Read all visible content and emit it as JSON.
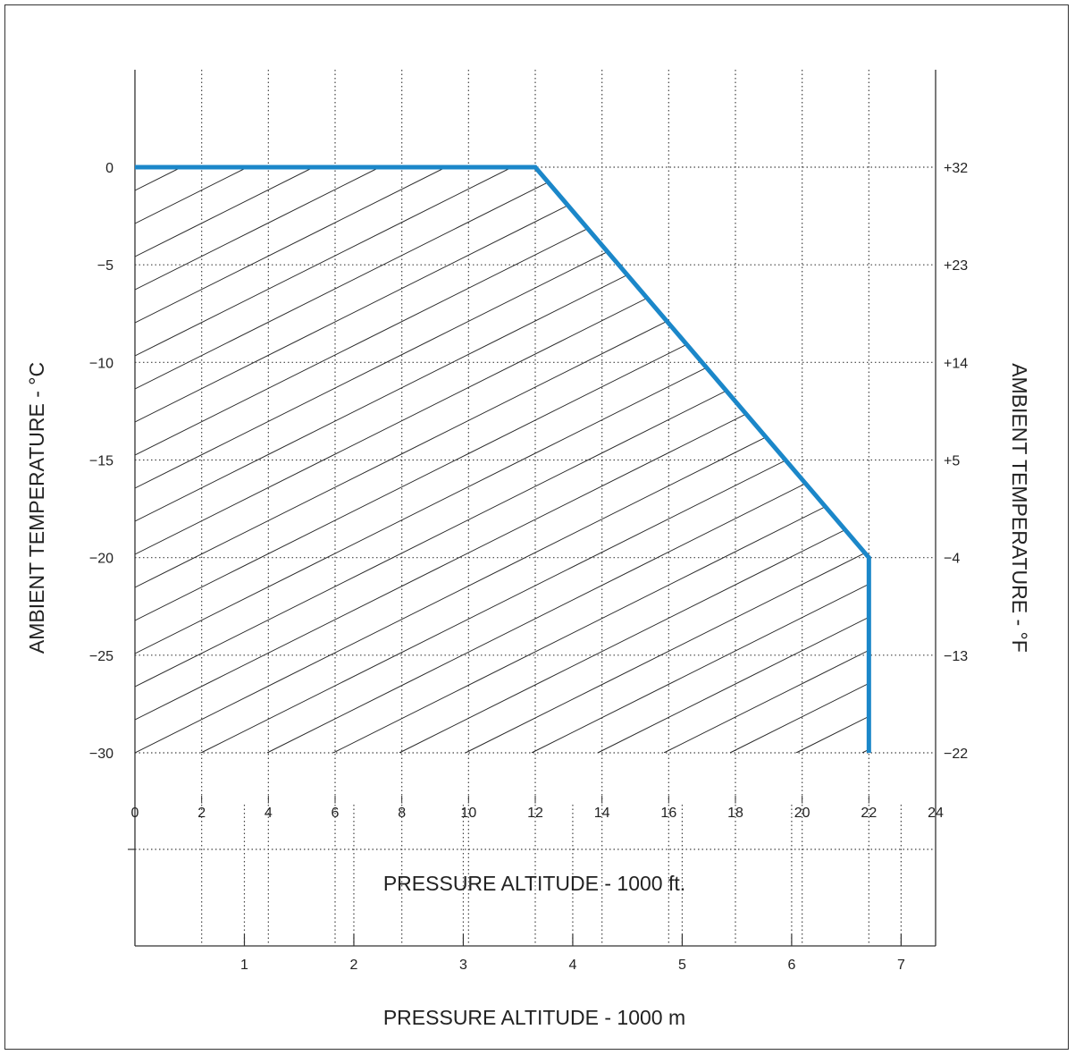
{
  "chart_data": {
    "type": "area",
    "xlabel": "PRESSURE ALTITUDE - 1000 ft.",
    "xlabel_secondary": "PRESSURE ALTITUDE - 1000 m",
    "ylabel": "AMBIENT TEMPERATURE - °C",
    "ylabel_secondary": "AMBIENT TEMPERATURE - °F",
    "xlim": [
      0,
      24
    ],
    "ylim": [
      -30,
      0
    ],
    "x_ticks": [
      0,
      2,
      4,
      6,
      8,
      10,
      12,
      14,
      16,
      18,
      20,
      22,
      24
    ],
    "x_tick_labels": [
      "0",
      "2",
      "4",
      "6",
      "8",
      "10",
      "12",
      "14",
      "16",
      "18",
      "20",
      "22",
      "24"
    ],
    "y_ticks": [
      0,
      -5,
      -10,
      -15,
      -20,
      -25,
      -30
    ],
    "y_tick_labels": [
      "0",
      "−5",
      "−10",
      "−15",
      "−20",
      "−25",
      "−30"
    ],
    "y2_tick_labels": [
      "+32",
      "+23",
      "+14",
      "+5",
      "−4",
      "−13",
      "−22"
    ],
    "x2_ticks_m": [
      1,
      2,
      3,
      4,
      5,
      6,
      7
    ],
    "x2_tick_labels": [
      "1",
      "2",
      "3",
      "4",
      "5",
      "6",
      "7"
    ],
    "grid": true,
    "grid_style": "dotted",
    "boundary": {
      "color": "#1b87c9",
      "x": [
        0,
        12,
        22,
        22
      ],
      "y": [
        0,
        0,
        -20,
        -30
      ]
    },
    "fill": "hatched"
  }
}
